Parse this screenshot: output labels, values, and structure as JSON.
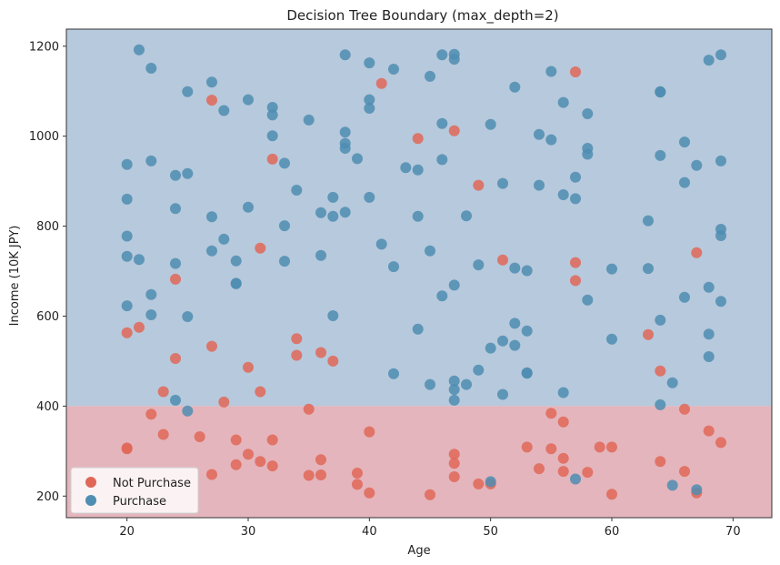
{
  "chart_data": {
    "type": "scatter",
    "title": "Decision Tree Boundary (max_depth=2)",
    "xlabel": "Age",
    "ylabel": "Income (10K JPY)",
    "xlim": [
      15,
      73.2
    ],
    "ylim": [
      152,
      1238
    ],
    "xticks": [
      20,
      30,
      40,
      50,
      60,
      70
    ],
    "yticks": [
      200,
      400,
      600,
      800,
      1000,
      1200
    ],
    "decision_boundary": {
      "feature": "Income (10K JPY)",
      "threshold": 400,
      "regions": [
        {
          "name": "Not Purchase",
          "side": "below",
          "color": "#e4b5bc"
        },
        {
          "name": "Purchase",
          "side": "above",
          "color": "#b7c9dc"
        }
      ]
    },
    "legend_position": "bottom-left",
    "series": [
      {
        "name": "Not Purchase",
        "color": "#e06758",
        "points": [
          [
            20,
            305
          ],
          [
            20,
            307
          ],
          [
            20,
            563
          ],
          [
            21,
            575
          ],
          [
            22,
            382
          ],
          [
            23,
            337
          ],
          [
            23,
            432
          ],
          [
            24,
            506
          ],
          [
            24,
            682
          ],
          [
            26,
            332
          ],
          [
            27,
            248
          ],
          [
            27,
            533
          ],
          [
            27,
            1080
          ],
          [
            28,
            409
          ],
          [
            29,
            270
          ],
          [
            29,
            325
          ],
          [
            30,
            293
          ],
          [
            30,
            486
          ],
          [
            31,
            277
          ],
          [
            31,
            432
          ],
          [
            31,
            751
          ],
          [
            32,
            267
          ],
          [
            32,
            325
          ],
          [
            32,
            949
          ],
          [
            34,
            513
          ],
          [
            34,
            550
          ],
          [
            35,
            246
          ],
          [
            35,
            393
          ],
          [
            36,
            247
          ],
          [
            36,
            281
          ],
          [
            36,
            519
          ],
          [
            37,
            500
          ],
          [
            39,
            251
          ],
          [
            39,
            226
          ],
          [
            40,
            207
          ],
          [
            40,
            343
          ],
          [
            41,
            1117
          ],
          [
            44,
            995
          ],
          [
            45,
            203
          ],
          [
            47,
            243
          ],
          [
            47,
            273
          ],
          [
            47,
            293
          ],
          [
            47,
            1012
          ],
          [
            49,
            227
          ],
          [
            49,
            891
          ],
          [
            50,
            227
          ],
          [
            51,
            725
          ],
          [
            53,
            309
          ],
          [
            54,
            261
          ],
          [
            55,
            305
          ],
          [
            55,
            384
          ],
          [
            56,
            255
          ],
          [
            56,
            284
          ],
          [
            56,
            365
          ],
          [
            57,
            719
          ],
          [
            57,
            679
          ],
          [
            57,
            1143
          ],
          [
            58,
            253
          ],
          [
            59,
            309
          ],
          [
            60,
            204
          ],
          [
            60,
            309
          ],
          [
            63,
            559
          ],
          [
            64,
            277
          ],
          [
            64,
            478
          ],
          [
            66,
            393
          ],
          [
            66,
            255
          ],
          [
            67,
            207
          ],
          [
            67,
            741
          ],
          [
            68,
            345
          ],
          [
            69,
            319
          ]
        ]
      },
      {
        "name": "Purchase",
        "color": "#4f8db2",
        "points": [
          [
            20,
            937
          ],
          [
            20,
            860
          ],
          [
            20,
            778
          ],
          [
            20,
            733
          ],
          [
            20,
            623
          ],
          [
            21,
            1192
          ],
          [
            21,
            726
          ],
          [
            22,
            1151
          ],
          [
            22,
            945
          ],
          [
            22,
            648
          ],
          [
            22,
            603
          ],
          [
            24,
            913
          ],
          [
            24,
            839
          ],
          [
            24,
            717
          ],
          [
            24,
            413
          ],
          [
            25,
            1099
          ],
          [
            25,
            917
          ],
          [
            25,
            599
          ],
          [
            25,
            389
          ],
          [
            27,
            1120
          ],
          [
            27,
            821
          ],
          [
            27,
            745
          ],
          [
            28,
            1057
          ],
          [
            28,
            771
          ],
          [
            29,
            723
          ],
          [
            29,
            672
          ],
          [
            29,
            673
          ],
          [
            30,
            1081
          ],
          [
            30,
            842
          ],
          [
            32,
            1064
          ],
          [
            32,
            1047
          ],
          [
            32,
            1001
          ],
          [
            33,
            940
          ],
          [
            33,
            801
          ],
          [
            33,
            722
          ],
          [
            34,
            880
          ],
          [
            35,
            1036
          ],
          [
            36,
            830
          ],
          [
            36,
            735
          ],
          [
            37,
            864
          ],
          [
            37,
            822
          ],
          [
            37,
            601
          ],
          [
            38,
            1181
          ],
          [
            38,
            1009
          ],
          [
            38,
            984
          ],
          [
            38,
            973
          ],
          [
            38,
            831
          ],
          [
            39,
            950
          ],
          [
            40,
            1163
          ],
          [
            40,
            1081
          ],
          [
            40,
            1062
          ],
          [
            40,
            864
          ],
          [
            41,
            760
          ],
          [
            42,
            1149
          ],
          [
            42,
            710
          ],
          [
            42,
            472
          ],
          [
            43,
            930
          ],
          [
            44,
            925
          ],
          [
            44,
            822
          ],
          [
            44,
            571
          ],
          [
            45,
            1133
          ],
          [
            45,
            745
          ],
          [
            45,
            448
          ],
          [
            46,
            1181
          ],
          [
            46,
            1028
          ],
          [
            46,
            948
          ],
          [
            46,
            645
          ],
          [
            47,
            1182
          ],
          [
            47,
            1171
          ],
          [
            47,
            669
          ],
          [
            47,
            456
          ],
          [
            47,
            437
          ],
          [
            47,
            413
          ],
          [
            48,
            823
          ],
          [
            48,
            448
          ],
          [
            49,
            714
          ],
          [
            49,
            480
          ],
          [
            50,
            1026
          ],
          [
            50,
            529
          ],
          [
            50,
            232
          ],
          [
            51,
            895
          ],
          [
            51,
            545
          ],
          [
            51,
            426
          ],
          [
            52,
            1109
          ],
          [
            52,
            707
          ],
          [
            52,
            584
          ],
          [
            52,
            535
          ],
          [
            53,
            701
          ],
          [
            53,
            567
          ],
          [
            53,
            474
          ],
          [
            53,
            473
          ],
          [
            54,
            1004
          ],
          [
            54,
            891
          ],
          [
            55,
            1144
          ],
          [
            55,
            992
          ],
          [
            56,
            1075
          ],
          [
            56,
            870
          ],
          [
            56,
            430
          ],
          [
            57,
            909
          ],
          [
            57,
            861
          ],
          [
            57,
            238
          ],
          [
            58,
            1050
          ],
          [
            58,
            973
          ],
          [
            58,
            960
          ],
          [
            58,
            636
          ],
          [
            60,
            705
          ],
          [
            60,
            549
          ],
          [
            63,
            812
          ],
          [
            63,
            706
          ],
          [
            64,
            1098
          ],
          [
            64,
            1099
          ],
          [
            64,
            957
          ],
          [
            64,
            591
          ],
          [
            64,
            403
          ],
          [
            65,
            452
          ],
          [
            65,
            224
          ],
          [
            66,
            987
          ],
          [
            66,
            897
          ],
          [
            66,
            642
          ],
          [
            67,
            935
          ],
          [
            67,
            214
          ],
          [
            68,
            1169
          ],
          [
            68,
            664
          ],
          [
            68,
            560
          ],
          [
            68,
            510
          ],
          [
            69,
            1181
          ],
          [
            69,
            945
          ],
          [
            69,
            793
          ],
          [
            69,
            779
          ],
          [
            69,
            633
          ]
        ]
      }
    ]
  }
}
